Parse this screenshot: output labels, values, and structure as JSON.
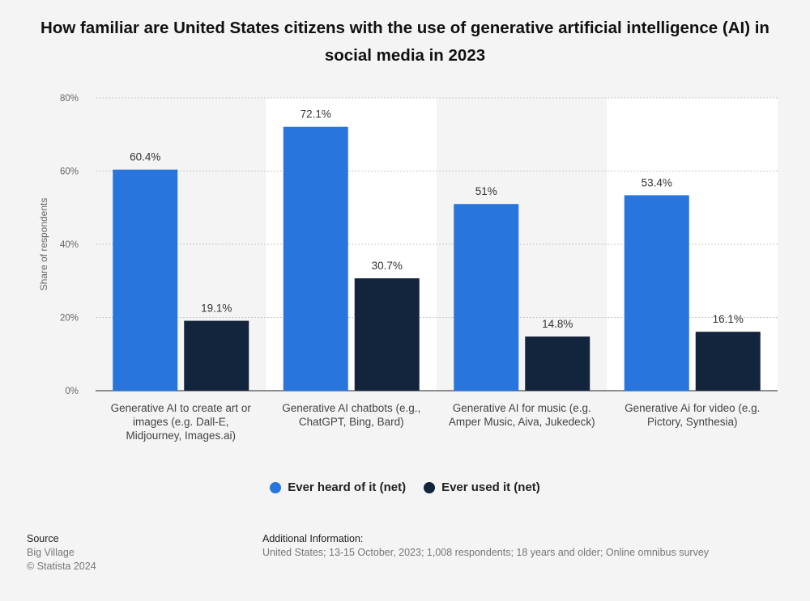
{
  "title": "How familiar are United States citizens with the use of generative artificial intelligence (AI) in social media in 2023",
  "colors": {
    "series1": "#2876dd",
    "series2": "#13253c",
    "band": "#ffffff",
    "background": "#f4f4f4"
  },
  "chart_data": {
    "type": "bar",
    "title": "How familiar are United States citizens with the use of generative artificial intelligence (AI) in social media in 2023",
    "ylabel": "Share of respondents",
    "xlabel": "",
    "ylim": [
      0,
      80
    ],
    "yticks": [
      0,
      20,
      40,
      60,
      80
    ],
    "ytick_labels": [
      "0%",
      "20%",
      "40%",
      "60%",
      "80%"
    ],
    "categories": [
      [
        "Generative AI to create art or",
        "images (e.g. Dall-E,",
        "Midjourney, Images.ai)"
      ],
      [
        "Generative AI chatbots (e.g.,",
        "ChatGPT, Bing, Bard)"
      ],
      [
        "Generative AI for music (e.g.",
        "Amper Music, Aiva, Jukedeck)"
      ],
      [
        "Generative Ai for video (e.g.",
        "Pictory, Synthesia)"
      ]
    ],
    "series": [
      {
        "name": "Ever heard of it (net)",
        "values": [
          60.4,
          72.1,
          51,
          53.4
        ],
        "labels": [
          "60.4%",
          "72.1%",
          "51%",
          "53.4%"
        ]
      },
      {
        "name": "Ever used it (net)",
        "values": [
          19.1,
          30.7,
          14.8,
          16.1
        ],
        "labels": [
          "19.1%",
          "30.7%",
          "14.8%",
          "16.1%"
        ]
      }
    ],
    "legend_position": "bottom-center",
    "grid": true
  },
  "legend": {
    "items": [
      {
        "label": "Ever heard of it (net)"
      },
      {
        "label": "Ever used it (net)"
      }
    ]
  },
  "source": {
    "heading": "Source",
    "line1": "Big Village",
    "line2": "© Statista 2024"
  },
  "additional_info": {
    "heading": "Additional Information:",
    "text": "United States; 13-15 October, 2023; 1,008 respondents; 18 years and older; Online omnibus survey"
  }
}
